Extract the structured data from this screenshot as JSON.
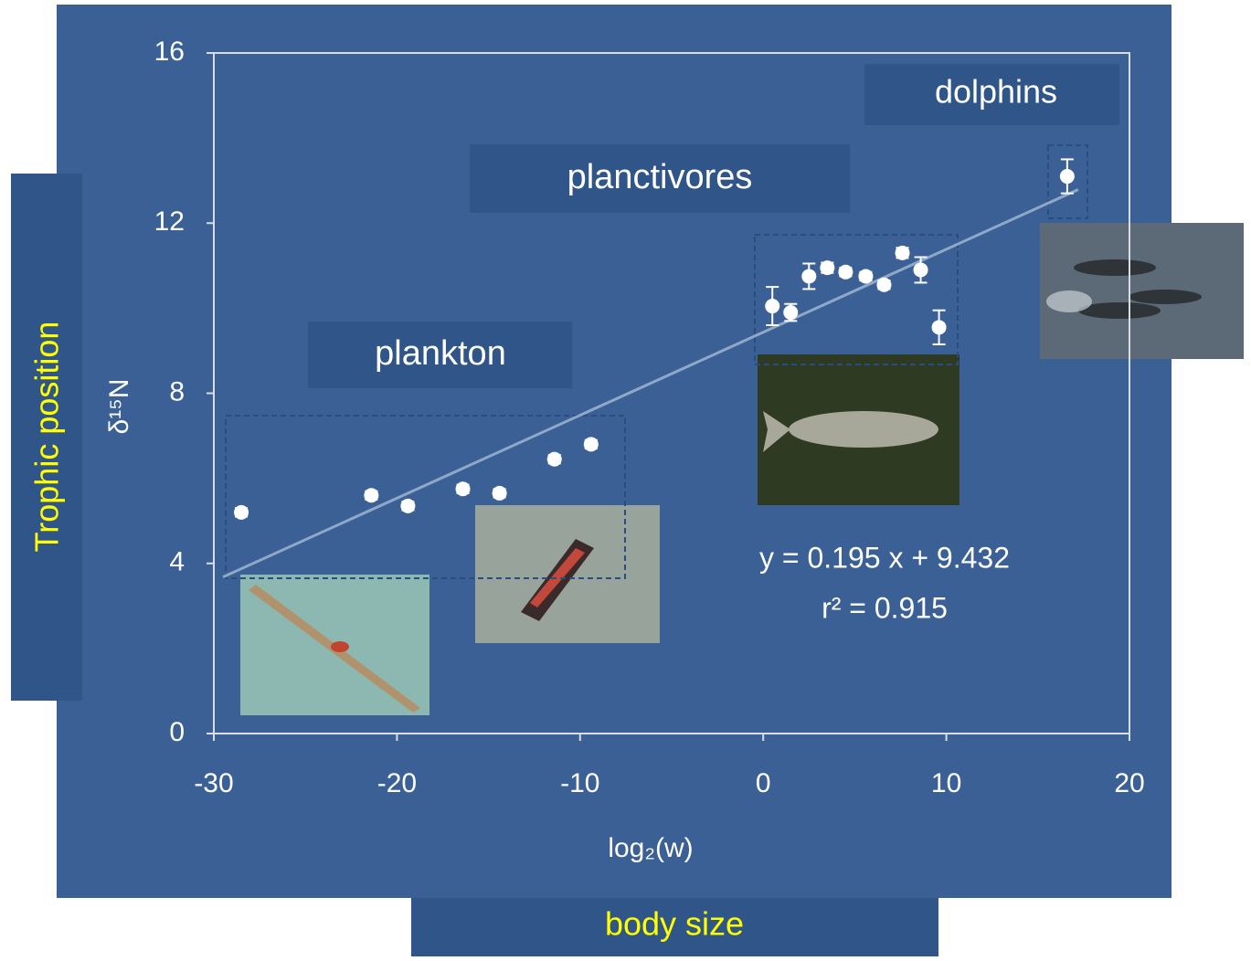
{
  "chart_data": {
    "type": "scatter",
    "x": [
      -28.5,
      -21.4,
      -19.4,
      -16.4,
      -14.4,
      -11.4,
      -9.4,
      0.5,
      1.5,
      2.5,
      3.5,
      4.5,
      5.6,
      6.6,
      7.6,
      8.6,
      9.6,
      16.6
    ],
    "values": [
      5.2,
      5.6,
      5.35,
      5.75,
      5.65,
      6.45,
      6.8,
      10.05,
      9.9,
      10.75,
      10.95,
      10.85,
      10.75,
      10.55,
      11.3,
      10.9,
      9.55,
      13.1
    ],
    "errors": [
      0.1,
      0.1,
      0.1,
      0.1,
      0.1,
      0.1,
      0.1,
      0.45,
      0.2,
      0.3,
      0.12,
      0.1,
      0.1,
      0.1,
      0.12,
      0.3,
      0.4,
      0.4
    ],
    "color": "#ffffff",
    "trendline": {
      "x": [
        -29.5,
        17.2
      ],
      "values": [
        3.68,
        12.79
      ]
    },
    "xlim": [
      -30,
      20
    ],
    "xticks": [
      -30,
      -20,
      -10,
      0,
      10,
      20
    ],
    "ylim": [
      0,
      16
    ],
    "yticks": [
      0,
      4,
      8,
      12,
      16
    ],
    "x_label": "log₂(w)",
    "y_label": "δ¹⁵N",
    "equation": "y = 0.195 x + 9.432",
    "r_squared": "r² = 0.915",
    "annotations": [
      "dolphins",
      "planctivores",
      "plankton"
    ],
    "outer_y_label": "Trophic position",
    "outer_x_label": "body size"
  }
}
